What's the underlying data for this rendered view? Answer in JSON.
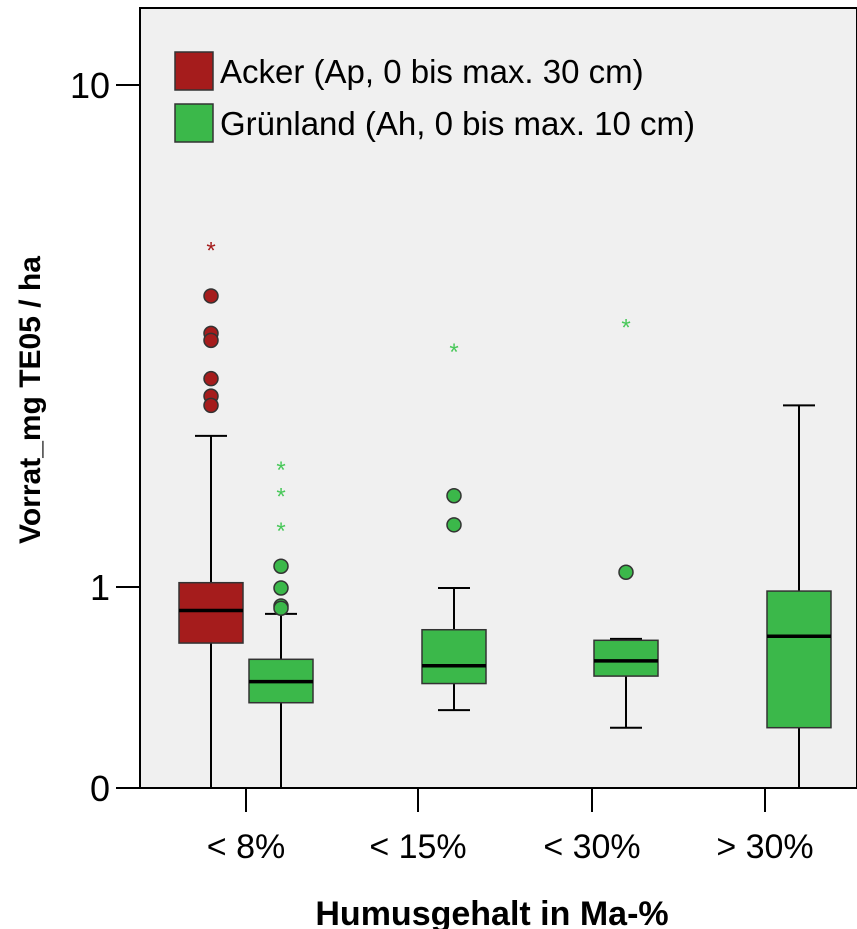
{
  "chart_data": {
    "type": "boxplot",
    "xlabel": "Humusgehalt in Ma-%",
    "ylabel": "Vorrat_mg TE05 / ha",
    "y_scale": "log-like (0, 1, 10)",
    "y_ticks": [
      {
        "label": "10",
        "value": 10
      },
      {
        "label": "1",
        "value": 1
      },
      {
        "label": "0",
        "value": 0
      }
    ],
    "categories": [
      "< 8%",
      "< 15%",
      "< 30%",
      "> 30%"
    ],
    "legend": {
      "placement": "top-left",
      "entries": [
        {
          "name": "Acker (Ap, 0 bis max. 30 cm)",
          "color": "#a51c1c"
        },
        {
          "name": "Grünland (Ah, 0 bis max. 10 cm)",
          "color": "#3bb84a"
        }
      ]
    },
    "colors": {
      "acker": "#a51c1c",
      "acker_star": "#a51c1c",
      "gruenland": "#3bb84a",
      "gruenland_star": "#49c85a",
      "plot_bg": "#f0f0f0"
    },
    "series": [
      {
        "name": "Acker (Ap, 0 bis max. 30 cm)",
        "boxes": [
          {
            "category": "< 8%",
            "whisker_low": 0,
            "q1": 0.52,
            "median": 0.78,
            "q3": 1.02,
            "whisker_high": 2.0,
            "outliers": [
              3.8,
              3.2,
              3.1,
              2.6,
              2.4,
              2.3
            ],
            "extremes": [
              4.7
            ]
          }
        ]
      },
      {
        "name": "Grünland (Ah, 0 bis max. 10 cm)",
        "boxes": [
          {
            "category": "< 8%",
            "whisker_low": 0,
            "q1": 0.18,
            "median": 0.28,
            "q3": 0.41,
            "whisker_high": 0.75,
            "outliers": [
              1.1,
              0.99,
              0.82,
              0.8
            ],
            "extremes": [
              1.72,
              1.52,
              1.3
            ]
          },
          {
            "category": "< 15%",
            "whisker_low": 0.15,
            "q1": 0.27,
            "median": 0.37,
            "q3": 0.62,
            "whisker_high": 0.99,
            "outliers": [
              1.52,
              1.33
            ],
            "extremes": [
              2.95
            ]
          },
          {
            "category": "< 30%",
            "whisker_low": 0.09,
            "q1": 0.31,
            "median": 0.4,
            "q3": 0.54,
            "whisker_high": 0.55,
            "outliers": [
              1.07
            ],
            "extremes": [
              3.3
            ]
          },
          {
            "category": "> 30%",
            "whisker_low": 0,
            "q1": 0.09,
            "median": 0.57,
            "q3": 0.96,
            "whisker_high": 2.3,
            "outliers": [],
            "extremes": []
          }
        ]
      }
    ]
  }
}
